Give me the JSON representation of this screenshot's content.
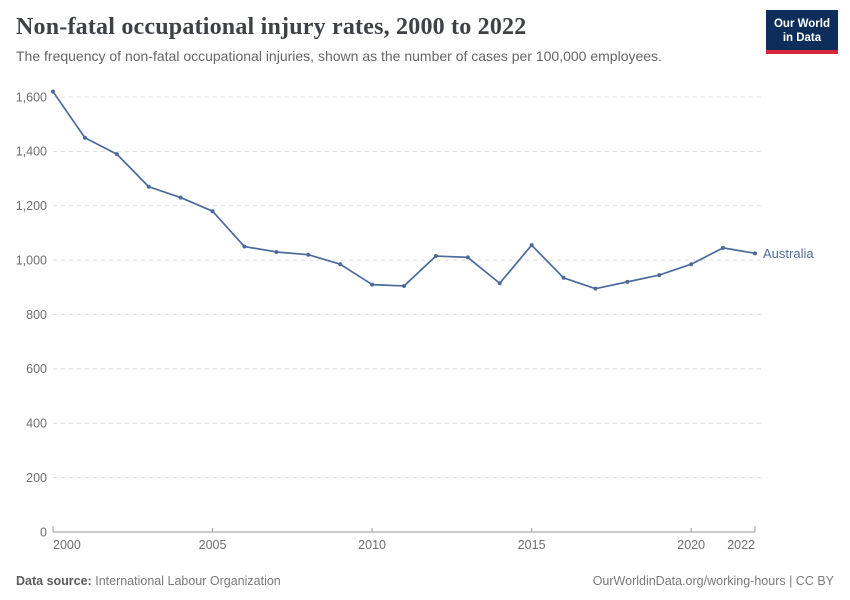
{
  "header": {
    "title": "Non-fatal occupational injury rates, 2000 to 2022",
    "subtitle": "The frequency of non-fatal occupational injuries, shown as the number of cases per 100,000 employees.",
    "logo": {
      "line1": "Our World",
      "line2": "in Data"
    }
  },
  "chart_data": {
    "type": "line",
    "title": "Non-fatal occupational injury rates, 2000 to 2022",
    "xlabel": "",
    "ylabel": "",
    "x": [
      2000,
      2001,
      2002,
      2003,
      2004,
      2005,
      2006,
      2007,
      2008,
      2009,
      2010,
      2011,
      2012,
      2013,
      2014,
      2015,
      2016,
      2017,
      2018,
      2019,
      2020,
      2021,
      2022
    ],
    "series": [
      {
        "name": "Australia",
        "color": "#4C6A9C",
        "values": [
          1620,
          1450,
          1390,
          1270,
          1230,
          1180,
          1050,
          1030,
          1020,
          985,
          910,
          905,
          1015,
          1010,
          915,
          1055,
          935,
          895,
          920,
          945,
          985,
          1045,
          1025
        ]
      }
    ],
    "x_ticks": [
      2000,
      2005,
      2010,
      2015,
      2020,
      2022
    ],
    "y_ticks": [
      0,
      200,
      400,
      600,
      800,
      1000,
      1200,
      1400,
      1600
    ],
    "xlim": [
      2000,
      2022
    ],
    "ylim": [
      0,
      1600
    ],
    "grid": "horizontal-dashed",
    "legend_position": "end-of-line"
  },
  "footer": {
    "datasource_label": "Data source:",
    "datasource_value": "International Labour Organization",
    "credit": "OurWorldinData.org/working-hours | CC BY"
  },
  "colors": {
    "line": "#4C6A9C",
    "grid": "#dcdcdc",
    "axis": "#999999",
    "tick_text": "#6e6e6e",
    "title_text": "#3e4247",
    "subtitle_text": "#666666",
    "logo_bg": "#0d2e5a",
    "logo_stripe": "#d7263c"
  }
}
